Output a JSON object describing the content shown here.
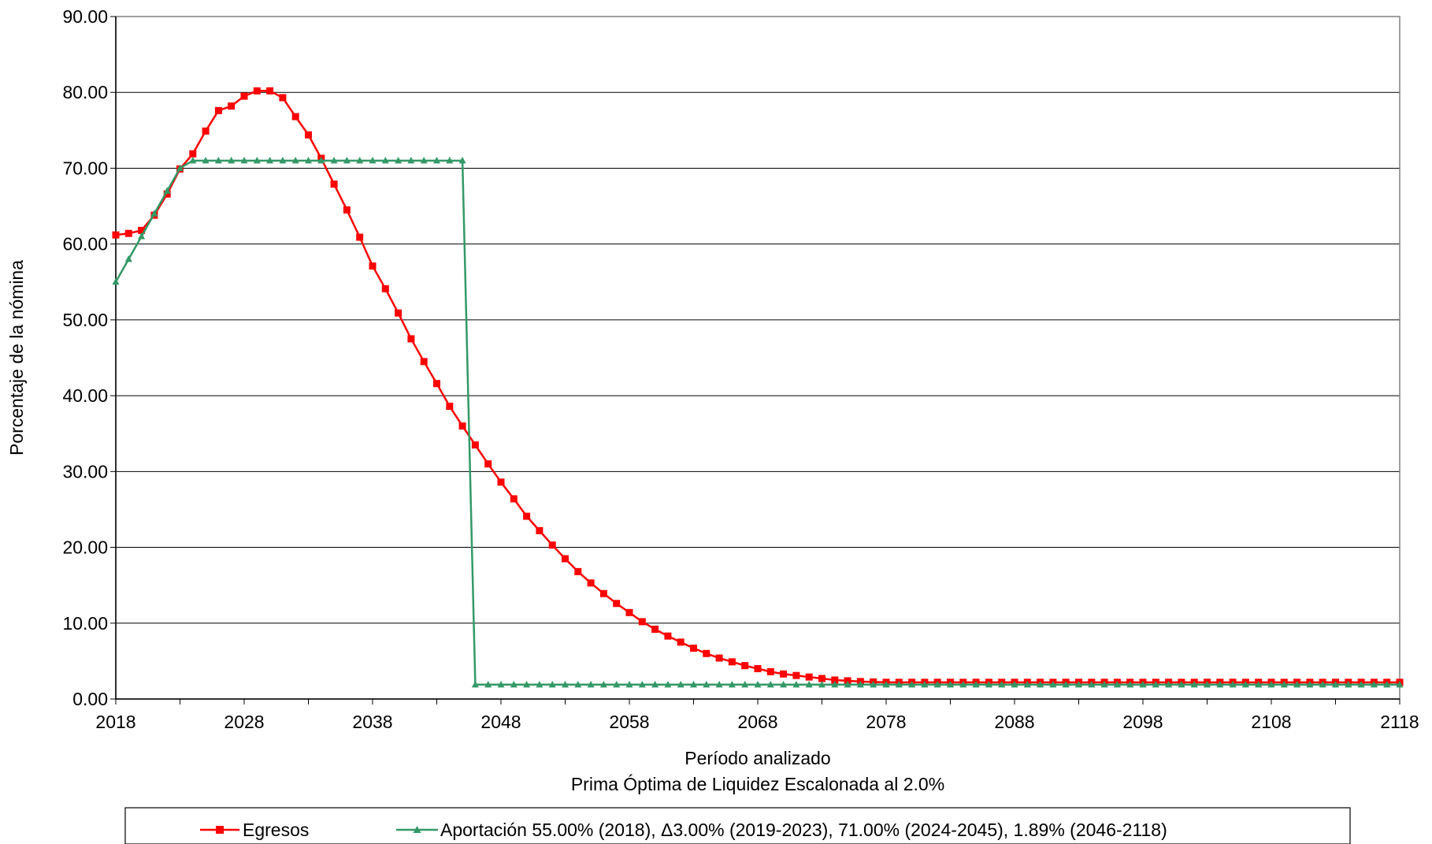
{
  "chart_data": {
    "type": "line",
    "title": "",
    "xlabel": "Período analizado",
    "subtitle": "Prima Óptima de Liquidez Escalonada al 2.0%",
    "ylabel": "Porcentaje de la nómina",
    "xlim": [
      2018,
      2118
    ],
    "ylim": [
      0,
      90
    ],
    "x_ticks": [
      "2018",
      "2028",
      "2038",
      "2048",
      "2058",
      "2068",
      "2078",
      "2088",
      "2098",
      "2108",
      "2118"
    ],
    "y_ticks": [
      "0.00",
      "10.00",
      "20.00",
      "30.00",
      "40.00",
      "50.00",
      "60.00",
      "70.00",
      "80.00",
      "90.00"
    ],
    "grid": "horizontal",
    "legend_position": "bottom",
    "series": [
      {
        "name": "Egresos",
        "color": "#ff0000",
        "marker": "square",
        "x": [
          2018,
          2019,
          2020,
          2021,
          2022,
          2023,
          2024,
          2025,
          2026,
          2027,
          2028,
          2029,
          2030,
          2031,
          2032,
          2033,
          2034,
          2035,
          2036,
          2037,
          2038,
          2039,
          2040,
          2041,
          2042,
          2043,
          2044,
          2045,
          2046,
          2047,
          2048,
          2049,
          2050,
          2051,
          2052,
          2053,
          2054,
          2055,
          2056,
          2057,
          2058,
          2059,
          2060,
          2061,
          2062,
          2063,
          2064,
          2065,
          2066,
          2067,
          2068,
          2069,
          2070,
          2071,
          2072,
          2073,
          2074,
          2075,
          2076,
          2077,
          2078,
          2079,
          2080,
          2081,
          2082,
          2083,
          2084,
          2085,
          2086,
          2087,
          2088,
          2089,
          2090,
          2091,
          2092,
          2093,
          2094,
          2095,
          2096,
          2097,
          2098,
          2099,
          2100,
          2101,
          2102,
          2103,
          2104,
          2105,
          2106,
          2107,
          2108,
          2109,
          2110,
          2111,
          2112,
          2113,
          2114,
          2115,
          2116,
          2117,
          2118
        ],
        "values": [
          61.2,
          61.4,
          61.8,
          63.8,
          66.6,
          69.9,
          71.9,
          74.9,
          77.6,
          78.2,
          79.5,
          80.2,
          80.2,
          79.3,
          76.8,
          74.4,
          71.3,
          67.9,
          64.5,
          60.9,
          57.1,
          54.1,
          50.9,
          47.5,
          44.5,
          41.6,
          38.6,
          36.0,
          33.5,
          31.0,
          28.6,
          26.4,
          24.1,
          22.2,
          20.3,
          18.5,
          16.8,
          15.3,
          13.9,
          12.6,
          11.4,
          10.2,
          9.2,
          8.3,
          7.5,
          6.7,
          6.0,
          5.4,
          4.9,
          4.4,
          4.0,
          3.6,
          3.3,
          3.1,
          2.9,
          2.7,
          2.5,
          2.4,
          2.3,
          2.25,
          2.2,
          2.2,
          2.2,
          2.2,
          2.2,
          2.2,
          2.2,
          2.2,
          2.2,
          2.2,
          2.2,
          2.2,
          2.2,
          2.2,
          2.2,
          2.2,
          2.2,
          2.2,
          2.2,
          2.2,
          2.2,
          2.2,
          2.2,
          2.2,
          2.2,
          2.2,
          2.2,
          2.2,
          2.2,
          2.2,
          2.2,
          2.2,
          2.2,
          2.2,
          2.2,
          2.2,
          2.2,
          2.2,
          2.2,
          2.2,
          2.2
        ]
      },
      {
        "name": "Aportación 55.00% (2018), Δ3.00% (2019-2023), 71.00% (2024-2045), 1.89% (2046-2118)",
        "color": "#339966",
        "marker": "triangle",
        "x": [
          2018,
          2019,
          2020,
          2021,
          2022,
          2023,
          2024,
          2025,
          2026,
          2027,
          2028,
          2029,
          2030,
          2031,
          2032,
          2033,
          2034,
          2035,
          2036,
          2037,
          2038,
          2039,
          2040,
          2041,
          2042,
          2043,
          2044,
          2045,
          2046,
          2047,
          2048,
          2049,
          2050,
          2051,
          2052,
          2053,
          2054,
          2055,
          2056,
          2057,
          2058,
          2059,
          2060,
          2061,
          2062,
          2063,
          2064,
          2065,
          2066,
          2067,
          2068,
          2069,
          2070,
          2071,
          2072,
          2073,
          2074,
          2075,
          2076,
          2077,
          2078,
          2079,
          2080,
          2081,
          2082,
          2083,
          2084,
          2085,
          2086,
          2087,
          2088,
          2089,
          2090,
          2091,
          2092,
          2093,
          2094,
          2095,
          2096,
          2097,
          2098,
          2099,
          2100,
          2101,
          2102,
          2103,
          2104,
          2105,
          2106,
          2107,
          2108,
          2109,
          2110,
          2111,
          2112,
          2113,
          2114,
          2115,
          2116,
          2117,
          2118
        ],
        "values": [
          55,
          58,
          61,
          64,
          67,
          70,
          71,
          71,
          71,
          71,
          71,
          71,
          71,
          71,
          71,
          71,
          71,
          71,
          71,
          71,
          71,
          71,
          71,
          71,
          71,
          71,
          71,
          71,
          1.89,
          1.89,
          1.89,
          1.89,
          1.89,
          1.89,
          1.89,
          1.89,
          1.89,
          1.89,
          1.89,
          1.89,
          1.89,
          1.89,
          1.89,
          1.89,
          1.89,
          1.89,
          1.89,
          1.89,
          1.89,
          1.89,
          1.89,
          1.89,
          1.89,
          1.89,
          1.89,
          1.89,
          1.89,
          1.89,
          1.89,
          1.89,
          1.89,
          1.89,
          1.89,
          1.89,
          1.89,
          1.89,
          1.89,
          1.89,
          1.89,
          1.89,
          1.89,
          1.89,
          1.89,
          1.89,
          1.89,
          1.89,
          1.89,
          1.89,
          1.89,
          1.89,
          1.89,
          1.89,
          1.89,
          1.89,
          1.89,
          1.89,
          1.89,
          1.89,
          1.89,
          1.89,
          1.89,
          1.89,
          1.89,
          1.89,
          1.89,
          1.89,
          1.89,
          1.89,
          1.89,
          1.89,
          1.89
        ]
      }
    ]
  }
}
